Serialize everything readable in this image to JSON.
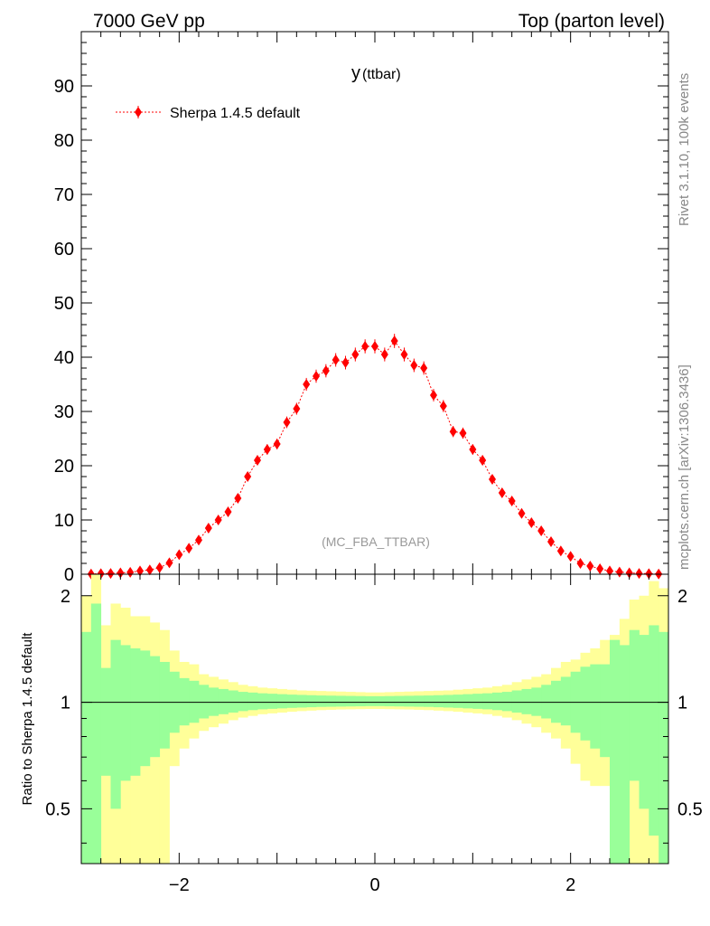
{
  "header": {
    "left": "7000 GeV pp",
    "right": "Top (parton level)"
  },
  "side": {
    "rivet": "Rivet 3.1.10,  100k events",
    "mcplots": "mcplots.cern.ch [arXiv:1306.3436]"
  },
  "chart_data": [
    {
      "type": "scatter",
      "title": "y (ttbar)",
      "title_main": "y",
      "title_sub": "(ttbar)",
      "annotation": "(MC_FBA_TTBAR)",
      "legend": "top-left",
      "grid": false,
      "xlim": [
        -3.0,
        3.0
      ],
      "ylim": [
        0,
        100
      ],
      "yticks": [
        0,
        10,
        20,
        30,
        40,
        50,
        60,
        70,
        80,
        90
      ],
      "series": [
        {
          "name": "Sherpa 1.4.5 default",
          "color": "#ff0000",
          "marker": "diamond",
          "line": "dotted",
          "x": [
            -2.9,
            -2.8,
            -2.7,
            -2.6,
            -2.5,
            -2.4,
            -2.3,
            -2.2,
            -2.1,
            -2.0,
            -1.9,
            -1.8,
            -1.7,
            -1.6,
            -1.5,
            -1.4,
            -1.3,
            -1.2,
            -1.1,
            -1.0,
            -0.9,
            -0.8,
            -0.7,
            -0.6,
            -0.5,
            -0.4,
            -0.3,
            -0.2,
            -0.1,
            0.0,
            0.1,
            0.2,
            0.3,
            0.4,
            0.5,
            0.6,
            0.7,
            0.8,
            0.9,
            1.0,
            1.1,
            1.2,
            1.3,
            1.4,
            1.5,
            1.6,
            1.7,
            1.8,
            1.9,
            2.0,
            2.1,
            2.2,
            2.3,
            2.4,
            2.5,
            2.6,
            2.7,
            2.8,
            2.9
          ],
          "y": [
            0.05,
            0.1,
            0.15,
            0.25,
            0.35,
            0.6,
            0.8,
            1.2,
            2.1,
            3.6,
            4.8,
            6.3,
            8.5,
            10.0,
            11.5,
            14.0,
            18.0,
            21.0,
            23.0,
            24.0,
            28.0,
            30.5,
            35.0,
            36.5,
            37.5,
            39.5,
            39.0,
            40.5,
            42.0,
            42.0,
            40.5,
            43.0,
            40.5,
            38.5,
            38.0,
            33.0,
            31.0,
            26.3,
            26.0,
            23.0,
            21.0,
            17.5,
            15.0,
            13.5,
            11.2,
            9.5,
            8.0,
            6.0,
            4.3,
            3.3,
            2.0,
            1.5,
            1.0,
            0.6,
            0.4,
            0.25,
            0.15,
            0.1,
            0.05
          ],
          "yerr": [
            0.05,
            0.05,
            0.06,
            0.08,
            0.1,
            0.14,
            0.17,
            0.22,
            0.29,
            0.38,
            0.44,
            0.5,
            0.58,
            0.63,
            0.68,
            0.75,
            0.85,
            0.92,
            0.96,
            0.98,
            1.06,
            1.1,
            1.18,
            1.2,
            1.22,
            1.25,
            1.24,
            1.27,
            1.29,
            1.29,
            1.27,
            1.31,
            1.27,
            1.24,
            1.23,
            1.15,
            1.11,
            1.03,
            1.02,
            0.96,
            0.92,
            0.84,
            0.77,
            0.73,
            0.67,
            0.62,
            0.56,
            0.49,
            0.41,
            0.36,
            0.28,
            0.24,
            0.2,
            0.15,
            0.12,
            0.09,
            0.07,
            0.06,
            0.05
          ]
        }
      ]
    },
    {
      "type": "area",
      "ylabel": "Ratio to Sherpa 1.4.5 default",
      "xlim": [
        -3.0,
        3.0
      ],
      "ylim": [
        0.35,
        2.3
      ],
      "yscale": "log",
      "xticks": [
        -2,
        0,
        2
      ],
      "xtick_labels": [
        "−2",
        "0",
        "2"
      ],
      "yticks": [
        0.5,
        1,
        2
      ],
      "ytick_labels": [
        "0.5",
        "1",
        "2"
      ],
      "reference_line": 1,
      "bins": [
        -3.0,
        -2.9,
        -2.8,
        -2.7,
        -2.6,
        -2.5,
        -2.4,
        -2.3,
        -2.2,
        -2.1,
        -2.0,
        -1.9,
        -1.8,
        -1.7,
        -1.6,
        -1.5,
        -1.4,
        -1.3,
        -1.2,
        -1.1,
        -1.0,
        -0.9,
        -0.8,
        -0.7,
        -0.6,
        -0.5,
        -0.4,
        -0.3,
        -0.2,
        -0.1,
        0.0,
        0.1,
        0.2,
        0.3,
        0.4,
        0.5,
        0.6,
        0.7,
        0.8,
        0.9,
        1.0,
        1.1,
        1.2,
        1.3,
        1.4,
        1.5,
        1.6,
        1.7,
        1.8,
        1.9,
        2.0,
        2.1,
        2.2,
        2.3,
        2.4,
        2.5,
        2.6,
        2.7,
        2.8,
        2.9,
        3.0
      ],
      "bands": [
        {
          "name": "2-sigma",
          "color": "#ffff99",
          "upper": [
            2.0,
            2.5,
            1.65,
            1.9,
            1.85,
            1.75,
            1.75,
            1.68,
            1.6,
            1.4,
            1.3,
            1.28,
            1.2,
            1.18,
            1.16,
            1.14,
            1.12,
            1.11,
            1.1,
            1.095,
            1.09,
            1.085,
            1.08,
            1.078,
            1.076,
            1.074,
            1.072,
            1.07,
            1.068,
            1.066,
            1.066,
            1.068,
            1.07,
            1.072,
            1.074,
            1.076,
            1.078,
            1.08,
            1.085,
            1.09,
            1.095,
            1.1,
            1.11,
            1.12,
            1.14,
            1.16,
            1.18,
            1.2,
            1.25,
            1.3,
            1.32,
            1.38,
            1.42,
            1.5,
            1.55,
            1.72,
            1.95,
            2.0,
            2.2,
            2.1
          ],
          "lower": [
            0.35,
            0.35,
            0.35,
            0.35,
            0.35,
            0.35,
            0.35,
            0.35,
            0.35,
            0.66,
            0.74,
            0.79,
            0.83,
            0.85,
            0.87,
            0.89,
            0.905,
            0.915,
            0.925,
            0.93,
            0.935,
            0.94,
            0.944,
            0.947,
            0.95,
            0.952,
            0.954,
            0.955,
            0.956,
            0.957,
            0.957,
            0.956,
            0.955,
            0.954,
            0.952,
            0.95,
            0.947,
            0.944,
            0.94,
            0.935,
            0.93,
            0.925,
            0.915,
            0.905,
            0.89,
            0.87,
            0.85,
            0.82,
            0.79,
            0.74,
            0.67,
            0.6,
            0.58,
            0.58,
            0.35,
            0.35,
            0.35,
            0.35,
            0.35,
            0.35
          ]
        },
        {
          "name": "1-sigma",
          "color": "#99ff99",
          "upper": [
            1.58,
            1.9,
            1.25,
            1.5,
            1.45,
            1.42,
            1.4,
            1.35,
            1.3,
            1.22,
            1.17,
            1.15,
            1.12,
            1.1,
            1.09,
            1.08,
            1.07,
            1.065,
            1.06,
            1.057,
            1.054,
            1.051,
            1.049,
            1.047,
            1.045,
            1.044,
            1.043,
            1.042,
            1.041,
            1.04,
            1.04,
            1.041,
            1.042,
            1.043,
            1.044,
            1.045,
            1.047,
            1.049,
            1.051,
            1.054,
            1.057,
            1.06,
            1.065,
            1.07,
            1.08,
            1.09,
            1.1,
            1.12,
            1.15,
            1.18,
            1.22,
            1.26,
            1.28,
            1.28,
            1.5,
            1.45,
            1.6,
            1.55,
            1.65,
            1.58
          ],
          "lower": [
            0.35,
            0.35,
            0.62,
            0.5,
            0.6,
            0.62,
            0.66,
            0.7,
            0.74,
            0.82,
            0.86,
            0.875,
            0.9,
            0.915,
            0.925,
            0.935,
            0.944,
            0.95,
            0.955,
            0.958,
            0.961,
            0.964,
            0.966,
            0.968,
            0.97,
            0.971,
            0.972,
            0.973,
            0.974,
            0.975,
            0.975,
            0.974,
            0.973,
            0.972,
            0.971,
            0.97,
            0.968,
            0.966,
            0.964,
            0.961,
            0.958,
            0.955,
            0.95,
            0.944,
            0.935,
            0.925,
            0.915,
            0.9,
            0.875,
            0.86,
            0.82,
            0.78,
            0.74,
            0.7,
            0.35,
            0.35,
            0.6,
            0.5,
            0.42,
            0.35
          ]
        }
      ]
    }
  ]
}
